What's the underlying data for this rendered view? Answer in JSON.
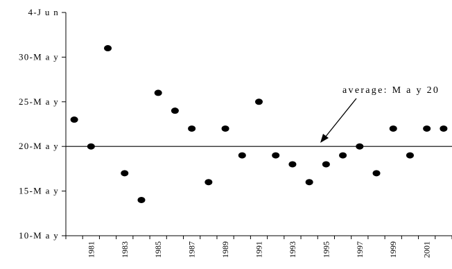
{
  "chart_data": {
    "type": "scatter",
    "title": "",
    "xlabel": "",
    "ylabel": "",
    "x": [
      1980,
      1981,
      1982,
      1983,
      1984,
      1985,
      1986,
      1987,
      1988,
      1989,
      1990,
      1991,
      1992,
      1993,
      1994,
      1995,
      1996,
      1997,
      1998,
      1999,
      2000,
      2001,
      2002
    ],
    "y": [
      "23-May",
      "20-May",
      "31-May",
      "17-May",
      "14-May",
      "26-May",
      "24-May",
      "22-May",
      "16-May",
      "22-May",
      "19-May",
      "25-May",
      "19-May",
      "18-May",
      "16-May",
      "18-May",
      "19-May",
      "20-May",
      "17-May",
      "22-May",
      "19-May",
      "22-May",
      "22-May"
    ],
    "x_tick_labels": [
      "1981",
      "1983",
      "1985",
      "1987",
      "1989",
      "1991",
      "1993",
      "1995",
      "1997",
      "1999",
      "2001"
    ],
    "y_tick_labels": [
      "10-May",
      "15-May",
      "20-May",
      "25-May",
      "30-May",
      "4-Jun"
    ],
    "ylim": [
      "10-May",
      "4-Jun"
    ],
    "grid": false,
    "reference_line": {
      "value": "20-May"
    },
    "annotation": {
      "text": "average: May 20"
    },
    "colors": {
      "points": "#000000",
      "line": "#000000"
    }
  }
}
